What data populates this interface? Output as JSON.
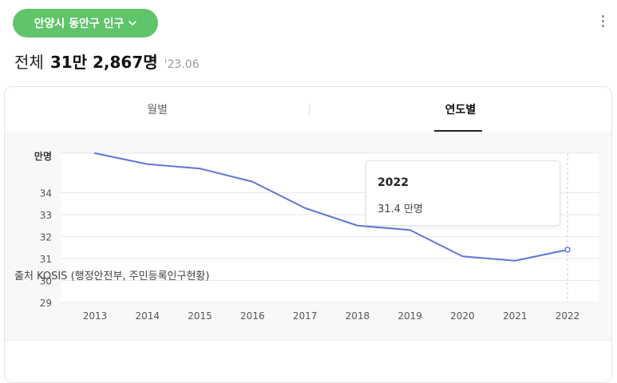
{
  "region_selector": {
    "label": "안양시 동안구 인구"
  },
  "headline": {
    "label": "전체",
    "value": "31만 2,867명",
    "date": "'23.06"
  },
  "tabs": [
    {
      "label": "월별",
      "active": false
    },
    {
      "label": "연도별",
      "active": true
    }
  ],
  "tooltip": {
    "year": "2022",
    "value": "31.4 만명"
  },
  "source": "출처 KOSIS (행정안전부, 주민등록인구현황)",
  "colors": {
    "pill": "#5fc46a",
    "line": "#6076d6",
    "chart_bg": "#f7f8fa"
  },
  "chart_data": {
    "type": "line",
    "unit_label": "만명",
    "x": [
      "2013",
      "2014",
      "2015",
      "2016",
      "2017",
      "2018",
      "2019",
      "2020",
      "2021",
      "2022"
    ],
    "series": [
      {
        "values": [
          35.8,
          35.3,
          35.1,
          34.5,
          33.3,
          32.5,
          32.3,
          31.1,
          30.9,
          31.4
        ]
      }
    ],
    "y_ticks": [
      29,
      30,
      31,
      32,
      33,
      34
    ],
    "ylim": [
      29,
      35.8
    ],
    "highlight_index": 9,
    "grid": true
  }
}
